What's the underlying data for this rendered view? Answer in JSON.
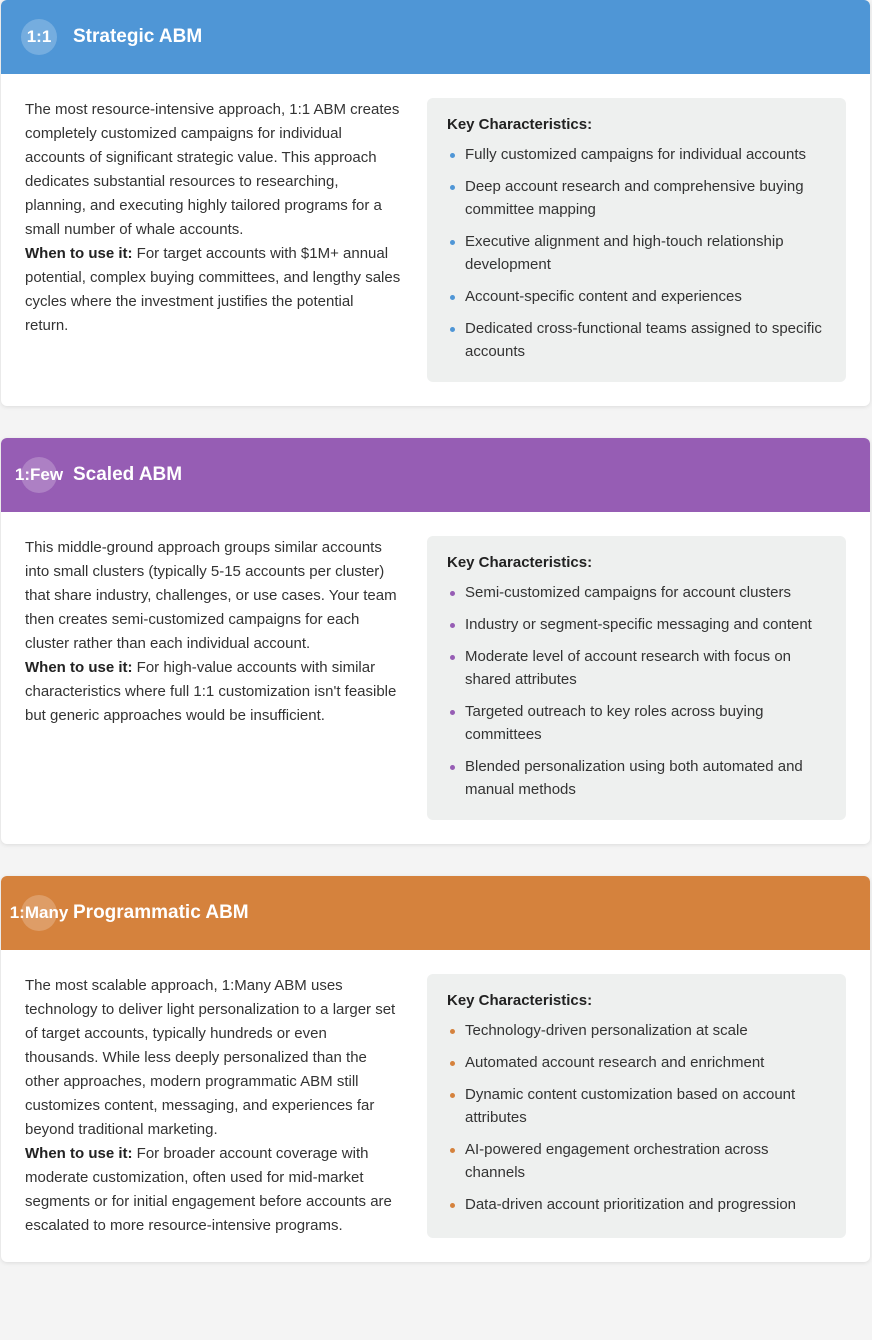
{
  "sections": [
    {
      "badge": "1:1",
      "title": "Strategic ABM",
      "color": "#4f96d6",
      "description": "The most resource-intensive approach, 1:1 ABM creates completely customized campaigns for individual accounts of significant strategic value. This approach dedicates substantial resources to researching, planning, and executing highly tailored programs for a small number of whale accounts.",
      "when_label": "When to use it:",
      "when_text": " For target accounts with $1M+ annual potential, complex buying committees, and lengthy sales cycles where the investment justifies the potential return.",
      "key_title": "Key Characteristics:",
      "items": [
        "Fully customized campaigns for individual accounts",
        "Deep account research and comprehensive buying committee mapping",
        "Executive alignment and high-touch relationship development",
        "Account-specific content and experiences",
        "Dedicated cross-functional teams assigned to specific accounts"
      ]
    },
    {
      "badge": "1:Few",
      "title": "Scaled ABM",
      "color": "#965db4",
      "description": "This middle-ground approach groups similar accounts into small clusters (typically 5-15 accounts per cluster) that share industry, challenges, or use cases. Your team then creates semi-customized campaigns for each cluster rather than each individual account.",
      "when_label": "When to use it:",
      "when_text": " For high-value accounts with similar characteristics where full 1:1 customization isn't feasible but generic approaches would be insufficient.",
      "key_title": "Key Characteristics:",
      "items": [
        "Semi-customized campaigns for account clusters",
        "Industry or segment-specific messaging and content",
        "Moderate level of account research with focus on shared attributes",
        "Targeted outreach to key roles across buying committees",
        "Blended personalization using both automated and manual methods"
      ]
    },
    {
      "badge": "1:Many",
      "title": "Programmatic ABM",
      "color": "#d5823d",
      "description": "The most scalable approach, 1:Many ABM uses technology to deliver light personalization to a larger set of target accounts, typically hundreds or even thousands. While less deeply personalized than the other approaches, modern programmatic ABM still customizes content, messaging, and experiences far beyond traditional marketing.",
      "when_label": "When to use it:",
      "when_text": " For broader account coverage with moderate customization, often used for mid-market segments or for initial engagement before accounts are escalated to more resource-intensive programs.",
      "key_title": "Key Characteristics:",
      "items": [
        "Technology-driven personalization at scale",
        "Automated account research and enrichment",
        "Dynamic content customization based on account attributes",
        "AI-powered engagement orchestration across channels",
        "Data-driven account prioritization and progression"
      ]
    }
  ]
}
